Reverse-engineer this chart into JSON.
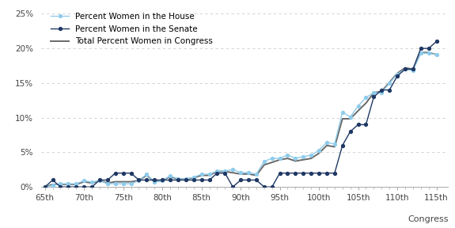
{
  "congresses": [
    65,
    66,
    67,
    68,
    69,
    70,
    71,
    72,
    73,
    74,
    75,
    76,
    77,
    78,
    79,
    80,
    81,
    82,
    83,
    84,
    85,
    86,
    87,
    88,
    89,
    90,
    91,
    92,
    93,
    94,
    95,
    96,
    97,
    98,
    99,
    100,
    101,
    102,
    103,
    104,
    105,
    106,
    107,
    108,
    109,
    110,
    111,
    112,
    113,
    114,
    115
  ],
  "house": [
    0.0,
    0.23,
    0.46,
    0.46,
    0.46,
    0.92,
    0.69,
    0.92,
    0.46,
    0.46,
    0.46,
    0.46,
    0.92,
    1.84,
    0.69,
    0.92,
    1.61,
    1.15,
    1.15,
    1.38,
    1.84,
    1.84,
    2.3,
    2.3,
    2.53,
    2.07,
    2.07,
    1.84,
    3.68,
    4.14,
    4.14,
    4.6,
    4.14,
    4.37,
    4.6,
    5.29,
    6.44,
    6.21,
    10.8,
    10.11,
    11.7,
    12.9,
    13.6,
    13.6,
    15.0,
    16.3,
    17.0,
    16.8,
    19.3,
    19.3,
    19.1
  ],
  "senate": [
    0.0,
    1.0,
    0.0,
    0.0,
    0.0,
    0.0,
    0.0,
    1.0,
    1.0,
    2.0,
    2.0,
    2.0,
    1.0,
    1.0,
    1.0,
    1.0,
    1.0,
    1.0,
    1.0,
    1.0,
    1.0,
    1.0,
    2.0,
    2.0,
    0.0,
    1.0,
    1.0,
    1.0,
    0.0,
    0.0,
    2.0,
    2.0,
    2.0,
    2.0,
    2.0,
    2.0,
    2.0,
    2.0,
    6.0,
    8.0,
    9.0,
    9.0,
    13.0,
    14.0,
    14.0,
    16.0,
    17.0,
    17.0,
    20.0,
    20.0,
    21.0
  ],
  "total": [
    0.0,
    0.37,
    0.37,
    0.37,
    0.37,
    0.75,
    0.56,
    0.93,
    0.56,
    0.75,
    0.75,
    0.75,
    0.93,
    1.68,
    0.75,
    0.93,
    1.49,
    1.12,
    1.12,
    1.31,
    1.68,
    1.68,
    2.24,
    2.24,
    2.05,
    1.87,
    1.87,
    1.68,
    3.18,
    3.55,
    3.93,
    4.12,
    3.74,
    3.93,
    4.12,
    4.87,
    5.99,
    5.8,
    9.84,
    9.84,
    11.0,
    12.1,
    13.6,
    13.8,
    15.1,
    16.4,
    17.2,
    17.0,
    19.4,
    19.4,
    19.1
  ],
  "house_color": "#8FCCEB",
  "senate_color": "#1F3864",
  "total_color": "#696969",
  "house_label": "Percent Women in the House",
  "senate_label": "Percent Women in the Senate",
  "total_label": "Total Percent Women in Congress",
  "ylabel_ticks": [
    0,
    5,
    10,
    15,
    20,
    25
  ],
  "ytick_labels": [
    "0%",
    "5%",
    "10%",
    "15%",
    "20%",
    "25%"
  ],
  "xtick_congresses": [
    65,
    70,
    75,
    80,
    85,
    90,
    95,
    100,
    105,
    110,
    115
  ],
  "xtick_labels": [
    "65th",
    "70th",
    "75th",
    "80th",
    "85th",
    "90th",
    "95th",
    "100th",
    "105th",
    "110th",
    "115th"
  ],
  "xlabel": "Congress",
  "ylim": [
    0,
    26
  ],
  "background_color": "#ffffff",
  "grid_color": "#cccccc"
}
